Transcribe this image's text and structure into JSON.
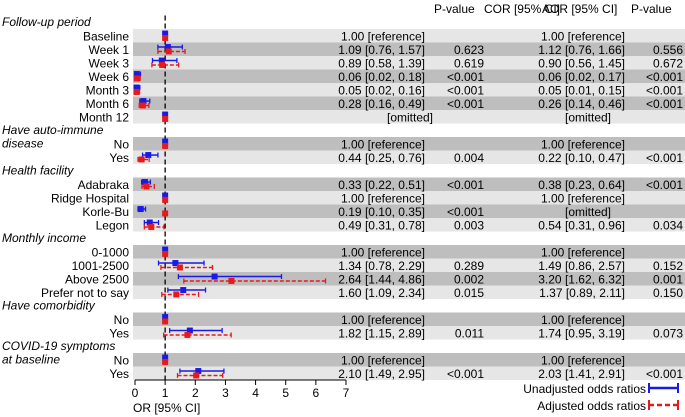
{
  "headers": {
    "cor": "COR [95% CI]",
    "p_cor": "P-value",
    "aor": "AOR [95% CI]",
    "p_aor": "P-value",
    "x_axis_label": "OR [95% CI]"
  },
  "legend": {
    "unadjusted": "Unadjusted odds ratios",
    "adjusted": "Adjusted odds ratios"
  },
  "chart_data": {
    "type": "forest",
    "xlim": [
      0,
      7
    ],
    "xticks": [
      0,
      1,
      2,
      3,
      4,
      5,
      6,
      7
    ],
    "reference_line": 1,
    "colors": {
      "unadjusted": "#1a1ae6",
      "adjusted": "#e61a1a",
      "band": "#e6e6e6",
      "band_alt": "#bebebe"
    },
    "groups": [
      {
        "title": "Follow-up period",
        "title_lines": [
          "Follow-up period"
        ],
        "rows": [
          {
            "label": "Baseline",
            "cor_text": "1.00 [reference]",
            "p_cor": "",
            "aor_text": "1.00 [reference]",
            "p_aor": "",
            "cor": [
              1.0,
              1.0,
              1.0
            ],
            "aor": [
              1.0,
              1.0,
              1.0
            ]
          },
          {
            "label": "Week 1",
            "cor_text": "1.09 [0.76, 1.57]",
            "p_cor": "0.623",
            "aor_text": "1.12 [0.76, 1.66]",
            "p_aor": "0.556",
            "cor": [
              1.09,
              0.76,
              1.57
            ],
            "aor": [
              1.12,
              0.76,
              1.66
            ]
          },
          {
            "label": "Week 3",
            "cor_text": "0.89 [0.58, 1.39]",
            "p_cor": "0.619",
            "aor_text": "0.90 [0.56, 1.45]",
            "p_aor": "0.672",
            "cor": [
              0.89,
              0.58,
              1.39
            ],
            "aor": [
              0.9,
              0.56,
              1.45
            ]
          },
          {
            "label": "Week 6",
            "cor_text": "0.06 [0.02, 0.18]",
            "p_cor": "<0.001",
            "aor_text": "0.06 [0.02, 0.17]",
            "p_aor": "<0.001",
            "cor": [
              0.06,
              0.02,
              0.18
            ],
            "aor": [
              0.06,
              0.02,
              0.17
            ]
          },
          {
            "label": "Month 3",
            "cor_text": "0.05 [0.02, 0.16]",
            "p_cor": "<0.001",
            "aor_text": "0.05 [0.01, 0.15]",
            "p_aor": "<0.001",
            "cor": [
              0.05,
              0.02,
              0.16
            ],
            "aor": [
              0.05,
              0.01,
              0.15
            ]
          },
          {
            "label": "Month 6",
            "cor_text": "0.28 [0.16, 0.49]",
            "p_cor": "<0.001",
            "aor_text": "0.26 [0.14, 0.46]",
            "p_aor": "<0.001",
            "cor": [
              0.28,
              0.16,
              0.49
            ],
            "aor": [
              0.26,
              0.14,
              0.46
            ]
          },
          {
            "label": "Month 12",
            "cor_text": "[omitted]",
            "p_cor": "",
            "aor_text": "[omitted]",
            "p_aor": "",
            "cor": [
              1.0,
              1.0,
              1.0
            ],
            "aor": [
              1.0,
              1.0,
              1.0
            ]
          }
        ]
      },
      {
        "title": "Have auto-immune disease",
        "title_lines": [
          "Have auto-immune",
          "disease"
        ],
        "rows": [
          {
            "label": "No",
            "cor_text": "1.00 [reference]",
            "p_cor": "",
            "aor_text": "1.00 [reference]",
            "p_aor": "",
            "cor": [
              1.0,
              1.0,
              1.0
            ],
            "aor": [
              1.0,
              1.0,
              1.0
            ]
          },
          {
            "label": "Yes",
            "cor_text": "0.44 [0.25, 0.76]",
            "p_cor": "0.004",
            "aor_text": "0.22 [0.10, 0.47]",
            "p_aor": "<0.001",
            "cor": [
              0.44,
              0.25,
              0.76
            ],
            "aor": [
              0.22,
              0.1,
              0.47
            ]
          }
        ]
      },
      {
        "title": "Health facility",
        "title_lines": [
          "Health facility"
        ],
        "rows": [
          {
            "label": "Adabraka",
            "cor_text": "0.33 [0.22, 0.51]",
            "p_cor": "<0.001",
            "aor_text": "0.38 [0.23, 0.64]",
            "p_aor": "<0.001",
            "cor": [
              0.33,
              0.22,
              0.51
            ],
            "aor": [
              0.38,
              0.23,
              0.64
            ]
          },
          {
            "label": "Ridge Hospital",
            "cor_text": "1.00 [reference]",
            "p_cor": "",
            "aor_text": "1.00 [reference]",
            "p_aor": "",
            "cor": [
              1.0,
              1.0,
              1.0
            ],
            "aor": [
              1.0,
              1.0,
              1.0
            ]
          },
          {
            "label": "Korle-Bu",
            "cor_text": "0.19 [0.10, 0.35]",
            "p_cor": "<0.001",
            "aor_text": "[omitted]",
            "p_aor": "",
            "cor": [
              0.19,
              0.1,
              0.35
            ],
            "aor": [
              1.0,
              1.0,
              1.0
            ]
          },
          {
            "label": "Legon",
            "cor_text": "0.49 [0.31, 0.78]",
            "p_cor": "0.003",
            "aor_text": "0.54 [0.31, 0.96]",
            "p_aor": "0.034",
            "cor": [
              0.49,
              0.31,
              0.78
            ],
            "aor": [
              0.54,
              0.31,
              0.96
            ]
          }
        ]
      },
      {
        "title": "Monthly income",
        "title_lines": [
          "Monthly income"
        ],
        "rows": [
          {
            "label": "0-1000",
            "cor_text": "1.00 [reference]",
            "p_cor": "",
            "aor_text": "1.00 [reference]",
            "p_aor": "",
            "cor": [
              1.0,
              1.0,
              1.0
            ],
            "aor": [
              1.0,
              1.0,
              1.0
            ]
          },
          {
            "label": "1001-2500",
            "cor_text": "1.34 [0.78, 2.29]",
            "p_cor": "0.289",
            "aor_text": "1.49 [0.86, 2.57]",
            "p_aor": "0.152",
            "cor": [
              1.34,
              0.78,
              2.29
            ],
            "aor": [
              1.49,
              0.86,
              2.57
            ]
          },
          {
            "label": "Above 2500",
            "cor_text": "2.64 [1.44, 4.86]",
            "p_cor": "0.002",
            "aor_text": "3.20 [1.62, 6.32]",
            "p_aor": "0.001",
            "cor": [
              2.64,
              1.44,
              4.86
            ],
            "aor": [
              3.2,
              1.62,
              6.32
            ]
          },
          {
            "label": "Prefer not to say",
            "cor_text": "1.60 [1.09, 2.34]",
            "p_cor": "0.015",
            "aor_text": "1.37 [0.89, 2.11]",
            "p_aor": "0.150",
            "cor": [
              1.6,
              1.09,
              2.34
            ],
            "aor": [
              1.37,
              0.89,
              2.11
            ]
          }
        ]
      },
      {
        "title": "Have comorbidity",
        "title_lines": [
          "Have comorbidity"
        ],
        "rows": [
          {
            "label": "No",
            "cor_text": "1.00 [reference]",
            "p_cor": "",
            "aor_text": "1.00 [reference]",
            "p_aor": "",
            "cor": [
              1.0,
              1.0,
              1.0
            ],
            "aor": [
              1.0,
              1.0,
              1.0
            ]
          },
          {
            "label": "Yes",
            "cor_text": "1.82 [1.15, 2.89]",
            "p_cor": "0.011",
            "aor_text": "1.74 [0.95, 3.19]",
            "p_aor": "0.073",
            "cor": [
              1.82,
              1.15,
              2.89
            ],
            "aor": [
              1.74,
              0.95,
              3.19
            ]
          }
        ]
      },
      {
        "title": "COVID-19 symptoms at baseline",
        "title_lines": [
          "COVID-19 symptoms",
          "at baseline"
        ],
        "rows": [
          {
            "label": "No",
            "cor_text": "1.00 [reference]",
            "p_cor": "",
            "aor_text": "1.00 [reference]",
            "p_aor": "",
            "cor": [
              1.0,
              1.0,
              1.0
            ],
            "aor": [
              1.0,
              1.0,
              1.0
            ]
          },
          {
            "label": "Yes",
            "cor_text": "2.10 [1.49, 2.95]",
            "p_cor": "<0.001",
            "aor_text": "2.03 [1.41, 2.91]",
            "p_aor": "<0.001",
            "cor": [
              2.1,
              1.49,
              2.95
            ],
            "aor": [
              2.03,
              1.41,
              2.91
            ]
          }
        ]
      }
    ]
  }
}
